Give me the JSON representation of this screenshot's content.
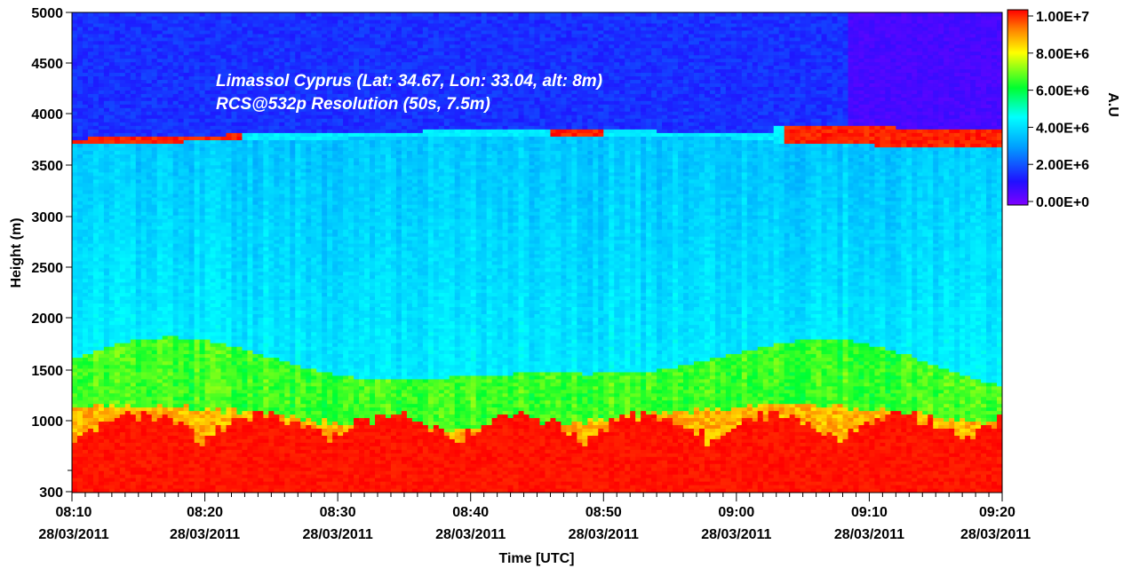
{
  "chart_data": {
    "type": "heatmap",
    "title": "",
    "annotations": [
      "Limassol Cyprus (Lat: 34.67, Lon: 33.04, alt: 8m)",
      "RCS@532p Resolution (50s, 7.5m)"
    ],
    "xlabel": "Time [UTC]",
    "ylabel": "Height (m)",
    "x_ticks": [
      {
        "time": "08:10",
        "date": "28/03/2011"
      },
      {
        "time": "08:20",
        "date": "28/03/2011"
      },
      {
        "time": "08:30",
        "date": "28/03/2011"
      },
      {
        "time": "08:40",
        "date": "28/03/2011"
      },
      {
        "time": "08:50",
        "date": "28/03/2011"
      },
      {
        "time": "09:00",
        "date": "28/03/2011"
      },
      {
        "time": "09:10",
        "date": "28/03/2011"
      },
      {
        "time": "09:20",
        "date": "28/03/2011"
      }
    ],
    "x_range_minutes_from_0810": [
      0,
      70
    ],
    "y_ticks": [
      300,
      1000,
      1500,
      2000,
      2500,
      3000,
      3500,
      4000,
      4500,
      5000
    ],
    "ylim": [
      300,
      5000
    ],
    "colorbar": {
      "label": "A.U",
      "ticks": [
        "1.00E+7",
        "8.00E+6",
        "6.00E+6",
        "4.00E+6",
        "2.00E+6",
        "0.00E+0"
      ],
      "values": [
        10000000,
        8000000,
        6000000,
        4000000,
        2000000,
        0
      ],
      "colormap": [
        "#7f00ff",
        "#0000ff",
        "#00ffff",
        "#00ff00",
        "#ffff00",
        "#ff0000"
      ]
    },
    "layers": [
      {
        "height_m": [
          300,
          900
        ],
        "description_level": "high",
        "signal_au": 10000000
      },
      {
        "height_m": [
          900,
          1100
        ],
        "signal_au": 8000000
      },
      {
        "height_m": [
          1100,
          1750
        ],
        "signal_au": 6000000
      },
      {
        "height_m": [
          1750,
          3700
        ],
        "signal_au": 3000000
      },
      {
        "height_m": [
          3700,
          3850
        ],
        "signal_au": 10000000
      },
      {
        "height_m": [
          3850,
          5000
        ],
        "signal_au": 1000000
      }
    ]
  }
}
